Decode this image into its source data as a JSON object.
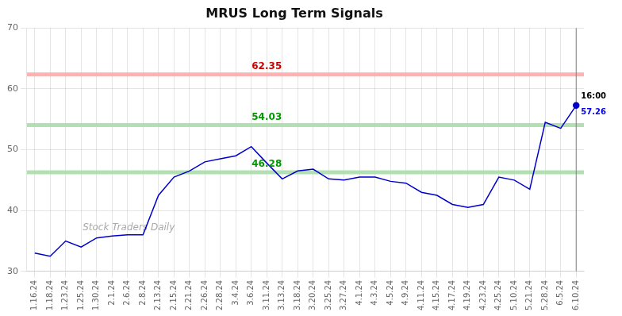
{
  "chart_data": {
    "type": "line",
    "title": "MRUS Long Term Signals",
    "categories": [
      "1.16.24",
      "1.18.24",
      "1.23.24",
      "1.25.24",
      "1.30.24",
      "2.1.24",
      "2.6.24",
      "2.8.24",
      "2.13.24",
      "2.15.24",
      "2.21.24",
      "2.26.24",
      "2.28.24",
      "3.4.24",
      "3.6.24",
      "3.11.24",
      "3.13.24",
      "3.18.24",
      "3.20.24",
      "3.25.24",
      "3.27.24",
      "4.1.24",
      "4.3.24",
      "4.5.24",
      "4.9.24",
      "4.11.24",
      "4.15.24",
      "4.17.24",
      "4.19.24",
      "4.23.24",
      "4.25.24",
      "5.10.24",
      "5.21.24",
      "5.28.24",
      "6.5.24",
      "6.10.24"
    ],
    "values": [
      33.0,
      32.5,
      35.0,
      34.0,
      35.5,
      35.8,
      36.0,
      36.0,
      42.5,
      45.5,
      46.5,
      48.0,
      48.5,
      49.0,
      50.5,
      47.8,
      45.2,
      46.5,
      46.8,
      45.2,
      45.0,
      45.5,
      45.5,
      44.8,
      44.5,
      43.0,
      42.5,
      41.0,
      40.5,
      41.0,
      45.5,
      45.0,
      43.5,
      54.5,
      53.5,
      57.26
    ],
    "color": "#0000cc",
    "marker": "circle",
    "ylim": [
      30,
      70
    ],
    "yticks": [
      30,
      40,
      50,
      60,
      70
    ],
    "grid": true,
    "hlines": [
      {
        "value": 62.35,
        "label": "62.35",
        "color": "#ffaaaa",
        "label_color": "#cc0000"
      },
      {
        "value": 54.03,
        "label": "54.03",
        "color": "#aaddaa",
        "label_color": "#009900"
      },
      {
        "value": 46.28,
        "label": "46.28",
        "color": "#aaddaa",
        "label_color": "#009900"
      }
    ],
    "last_point": {
      "time_label": "16:00",
      "value": 57.26,
      "value_label": "57.26",
      "color": "#0000ee"
    },
    "watermark": "Stock Traders Daily",
    "watermark_color": "#aaaaaa"
  }
}
